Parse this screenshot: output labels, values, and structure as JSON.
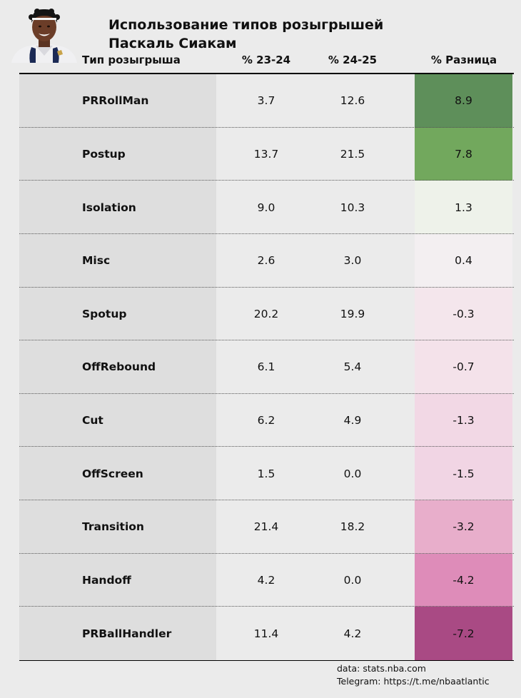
{
  "header": {
    "title_line1": "Использование типов розыгрышей",
    "title_line2": "Паскаль Сиакам"
  },
  "columns": {
    "type": "Тип розыгрыша",
    "season1": "% 23-24",
    "season2": "% 24-25",
    "diff": "% Разница"
  },
  "chart_data": {
    "type": "table",
    "title": "Использование типов розыгрышей Паскаль Сиакам",
    "columns": [
      "Тип розыгрыша",
      "% 23-24",
      "% 24-25",
      "% Разница"
    ],
    "rows": [
      {
        "type": "PRRollMan",
        "v1": "3.7",
        "v2": "12.6",
        "diff": "8.9",
        "color": "#5e8f5a"
      },
      {
        "type": "Postup",
        "v1": "13.7",
        "v2": "21.5",
        "diff": "7.8",
        "color": "#72a85d"
      },
      {
        "type": "Isolation",
        "v1": "9.0",
        "v2": "10.3",
        "diff": "1.3",
        "color": "#eef2ea"
      },
      {
        "type": "Misc",
        "v1": "2.6",
        "v2": "3.0",
        "diff": "0.4",
        "color": "#f3eff1"
      },
      {
        "type": "Spotup",
        "v1": "20.2",
        "v2": "19.9",
        "diff": "-0.3",
        "color": "#f4e6ec"
      },
      {
        "type": "OffRebound",
        "v1": "6.1",
        "v2": "5.4",
        "diff": "-0.7",
        "color": "#f4e2ea"
      },
      {
        "type": "Cut",
        "v1": "6.2",
        "v2": "4.9",
        "diff": "-1.3",
        "color": "#f2d8e5"
      },
      {
        "type": "OffScreen",
        "v1": "1.5",
        "v2": "0.0",
        "diff": "-1.5",
        "color": "#f1d5e4"
      },
      {
        "type": "Transition",
        "v1": "21.4",
        "v2": "18.2",
        "diff": "-3.2",
        "color": "#e8aecb"
      },
      {
        "type": "Handoff",
        "v1": "4.2",
        "v2": "0.0",
        "diff": "-4.2",
        "color": "#de8cb9"
      },
      {
        "type": "PRBallHandler",
        "v1": "11.4",
        "v2": "4.2",
        "diff": "-7.2",
        "color": "#a94a84"
      }
    ]
  },
  "footer": {
    "source": "data: stats.nba.com",
    "telegram": "Telegram: https://t.me/nbaatlantic"
  }
}
